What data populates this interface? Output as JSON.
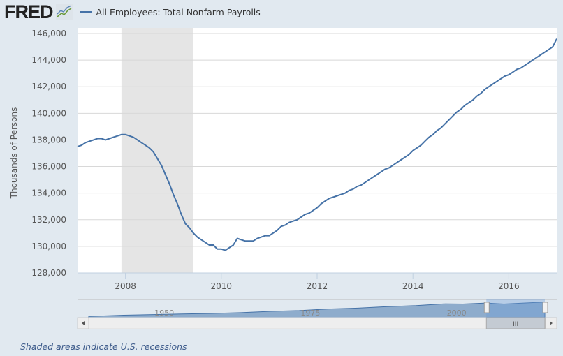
{
  "header": {
    "logo": "FRED",
    "legend_label": "All Employees: Total Nonfarm Payrolls",
    "series_color": "#4572a7"
  },
  "chart_data": {
    "type": "line",
    "title": "",
    "series": [
      {
        "name": "All Employees: Total Nonfarm Payrolls",
        "start": "2007-01",
        "frequency": "monthly",
        "values": [
          137.5,
          137.6,
          137.8,
          137.9,
          138.0,
          138.1,
          138.1,
          138.0,
          138.1,
          138.2,
          138.3,
          138.4,
          138.4,
          138.3,
          138.2,
          138.0,
          137.8,
          137.6,
          137.4,
          137.1,
          136.6,
          136.1,
          135.4,
          134.7,
          133.9,
          133.2,
          132.4,
          131.7,
          131.4,
          131.0,
          130.7,
          130.5,
          130.3,
          130.1,
          130.1,
          129.8,
          129.8,
          129.7,
          129.9,
          130.1,
          130.6,
          130.5,
          130.4,
          130.4,
          130.4,
          130.6,
          130.7,
          130.8,
          130.8,
          131.0,
          131.2,
          131.5,
          131.6,
          131.8,
          131.9,
          132.0,
          132.2,
          132.4,
          132.5,
          132.7,
          132.9,
          133.2,
          133.4,
          133.6,
          133.7,
          133.8,
          133.9,
          134.0,
          134.2,
          134.3,
          134.5,
          134.6,
          134.8,
          135.0,
          135.2,
          135.4,
          135.6,
          135.8,
          135.9,
          136.1,
          136.3,
          136.5,
          136.7,
          136.9,
          137.2,
          137.4,
          137.6,
          137.9,
          138.2,
          138.4,
          138.7,
          138.9,
          139.2,
          139.5,
          139.8,
          140.1,
          140.3,
          140.6,
          140.8,
          141.0,
          141.3,
          141.5,
          141.8,
          142.0,
          142.2,
          142.4,
          142.6,
          142.8,
          142.9,
          143.1,
          143.3,
          143.4,
          143.6,
          143.8,
          144.0,
          144.2,
          144.4,
          144.6,
          144.8,
          145.0,
          145.6
        ]
      }
    ],
    "ylabel": "Thousands of Persons",
    "ylim": [
      128000,
      146000
    ],
    "yticks": [
      "128,000",
      "130,000",
      "132,000",
      "134,000",
      "136,000",
      "138,000",
      "140,000",
      "142,000",
      "144,000",
      "146,000"
    ],
    "xlim": [
      "2007-01",
      "2017-01"
    ],
    "xticks": [
      "2008",
      "2010",
      "2012",
      "2014",
      "2016"
    ],
    "recessions": [
      [
        "2007-12",
        "2009-06"
      ]
    ],
    "grid": true,
    "navigator": {
      "range": [
        1939,
        2017
      ],
      "selected": [
        2007,
        2017
      ],
      "labels": [
        "1950",
        "1975",
        "2000"
      ],
      "points": [
        [
          1939,
          30
        ],
        [
          1945,
          40
        ],
        [
          1950,
          45
        ],
        [
          1955,
          50
        ],
        [
          1960,
          54
        ],
        [
          1965,
          60
        ],
        [
          1970,
          71
        ],
        [
          1975,
          77
        ],
        [
          1980,
          90
        ],
        [
          1985,
          97
        ],
        [
          1990,
          109
        ],
        [
          1995,
          117
        ],
        [
          2000,
          132
        ],
        [
          2003,
          130
        ],
        [
          2007,
          138
        ],
        [
          2010,
          130
        ],
        [
          2017,
          146
        ]
      ]
    }
  },
  "footer": {
    "note": "Shaded areas indicate U.S. recessions"
  }
}
